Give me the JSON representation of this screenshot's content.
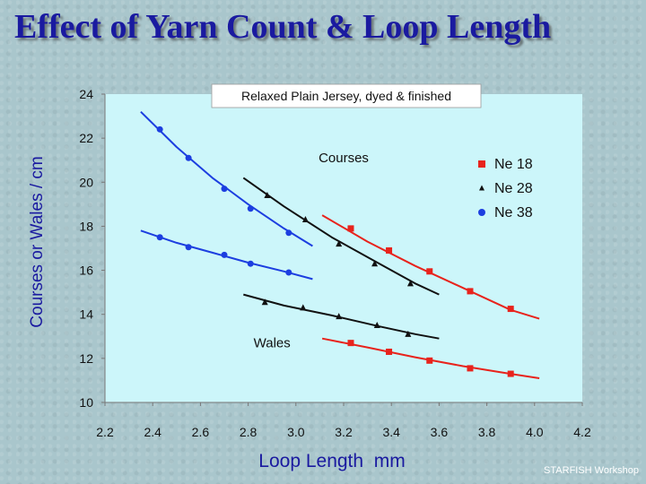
{
  "slide": {
    "title": "Effect of Yarn Count & Loop Length",
    "watermark": "STARFISH Workshop"
  },
  "chart_data": {
    "type": "scatter",
    "title": "Relaxed Plain Jersey, dyed & finished",
    "xlabel": "Loop Length  mm",
    "ylabel": "Courses or Wales / cm",
    "xlim": [
      2.2,
      4.2
    ],
    "ylim": [
      10,
      24
    ],
    "x_ticks": [
      "2.2",
      "2.4",
      "2.6",
      "2.8",
      "3.0",
      "3.2",
      "3.4",
      "3.6",
      "3.8",
      "4.0",
      "4.2"
    ],
    "y_ticks": [
      "10",
      "12",
      "14",
      "16",
      "18",
      "20",
      "22",
      "24"
    ],
    "grid": false,
    "legend_position": "right",
    "annotations": [
      {
        "text": "Courses",
        "x": 3.2,
        "y": 20.9
      },
      {
        "text": "Wales",
        "x": 2.9,
        "y": 12.5
      }
    ],
    "series": [
      {
        "name": "Ne 18",
        "marker": "square",
        "color": "#e8231c",
        "curves": [
          {
            "label": "courses",
            "points": [
              [
                3.23,
                17.9
              ],
              [
                3.39,
                16.9
              ],
              [
                3.56,
                15.95
              ],
              [
                3.73,
                15.05
              ],
              [
                3.9,
                14.25
              ]
            ],
            "fit": [
              [
                3.11,
                18.5
              ],
              [
                3.3,
                17.3
              ],
              [
                3.5,
                16.2
              ],
              [
                3.7,
                15.2
              ],
              [
                3.9,
                14.2
              ],
              [
                4.02,
                13.8
              ]
            ]
          },
          {
            "label": "wales",
            "points": [
              [
                3.23,
                12.7
              ],
              [
                3.39,
                12.3
              ],
              [
                3.56,
                11.9
              ],
              [
                3.73,
                11.55
              ],
              [
                3.9,
                11.3
              ]
            ],
            "fit": [
              [
                3.11,
                12.9
              ],
              [
                3.3,
                12.5
              ],
              [
                3.5,
                12.05
              ],
              [
                3.7,
                11.65
              ],
              [
                3.9,
                11.3
              ],
              [
                4.02,
                11.1
              ]
            ]
          }
        ]
      },
      {
        "name": "Ne 28",
        "marker": "triangle",
        "color": "#111111",
        "curves": [
          {
            "label": "courses",
            "points": [
              [
                2.88,
                19.4
              ],
              [
                3.04,
                18.3
              ],
              [
                3.18,
                17.2
              ],
              [
                3.33,
                16.3
              ],
              [
                3.48,
                15.4
              ]
            ],
            "fit": [
              [
                2.78,
                20.2
              ],
              [
                2.95,
                18.9
              ],
              [
                3.15,
                17.5
              ],
              [
                3.35,
                16.3
              ],
              [
                3.5,
                15.4
              ],
              [
                3.6,
                14.9
              ]
            ]
          },
          {
            "label": "wales",
            "points": [
              [
                2.87,
                14.55
              ],
              [
                3.03,
                14.3
              ],
              [
                3.18,
                13.9
              ],
              [
                3.34,
                13.5
              ],
              [
                3.47,
                13.1
              ]
            ],
            "fit": [
              [
                2.78,
                14.9
              ],
              [
                2.95,
                14.4
              ],
              [
                3.15,
                13.95
              ],
              [
                3.35,
                13.45
              ],
              [
                3.5,
                13.1
              ],
              [
                3.6,
                12.9
              ]
            ]
          }
        ]
      },
      {
        "name": "Ne 38",
        "marker": "circle",
        "color": "#1c3ee0",
        "curves": [
          {
            "label": "courses",
            "points": [
              [
                2.43,
                22.4
              ],
              [
                2.55,
                21.1
              ],
              [
                2.7,
                19.7
              ],
              [
                2.81,
                18.8
              ],
              [
                2.97,
                17.7
              ]
            ],
            "fit": [
              [
                2.35,
                23.2
              ],
              [
                2.5,
                21.6
              ],
              [
                2.65,
                20.2
              ],
              [
                2.8,
                19.0
              ],
              [
                2.95,
                17.9
              ],
              [
                3.07,
                17.1
              ]
            ]
          },
          {
            "label": "wales",
            "points": [
              [
                2.43,
                17.5
              ],
              [
                2.55,
                17.05
              ],
              [
                2.7,
                16.7
              ],
              [
                2.81,
                16.3
              ],
              [
                2.97,
                15.9
              ]
            ],
            "fit": [
              [
                2.35,
                17.8
              ],
              [
                2.5,
                17.25
              ],
              [
                2.65,
                16.8
              ],
              [
                2.8,
                16.35
              ],
              [
                2.95,
                15.95
              ],
              [
                3.07,
                15.6
              ]
            ]
          }
        ]
      }
    ]
  }
}
